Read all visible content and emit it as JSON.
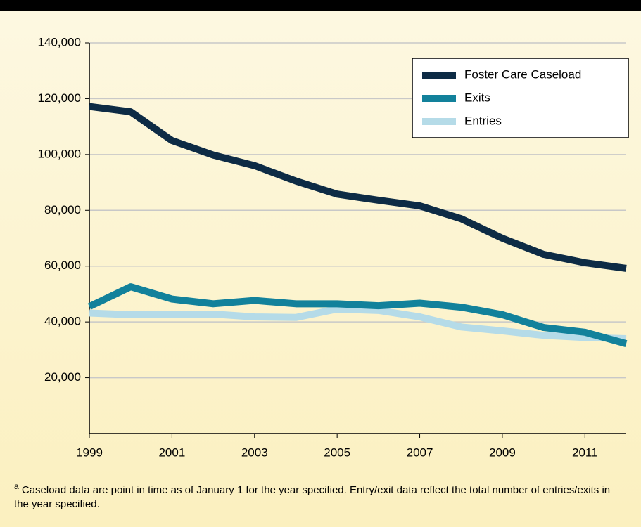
{
  "chart_data": {
    "type": "line",
    "x": [
      1999,
      2000,
      2001,
      2002,
      2003,
      2004,
      2005,
      2006,
      2007,
      2008,
      2009,
      2010,
      2011,
      2012
    ],
    "series": [
      {
        "name": "Foster Care Caseload",
        "color": "#0d2b45",
        "values": [
          117200,
          115300,
          105000,
          99800,
          96000,
          90500,
          85800,
          83600,
          81600,
          77000,
          70000,
          64200,
          61200,
          59200
        ]
      },
      {
        "name": "Exits",
        "color": "#12819b",
        "values": [
          45500,
          52600,
          48200,
          46500,
          47700,
          46500,
          46500,
          45800,
          46700,
          45300,
          42600,
          38000,
          36300,
          32200
        ]
      },
      {
        "name": "Entries",
        "color": "#b5dbe8",
        "values": [
          43200,
          42600,
          42800,
          42800,
          41800,
          41600,
          44600,
          44100,
          41800,
          38200,
          36800,
          35200,
          34400,
          34000
        ]
      }
    ],
    "xlim": [
      1999,
      2012
    ],
    "xticks": [
      1999,
      2001,
      2003,
      2005,
      2007,
      2009,
      2011
    ],
    "ylim": [
      0,
      140000
    ],
    "yticks": [
      {
        "value": 20000,
        "label": "20,000"
      },
      {
        "value": 40000,
        "label": "40,000"
      },
      {
        "value": 60000,
        "label": "60,000"
      },
      {
        "value": 80000,
        "label": "80,000"
      },
      {
        "value": 100000,
        "label": "100,000"
      },
      {
        "value": 120000,
        "label": "120,000"
      },
      {
        "value": 140000,
        "label": "140,000"
      }
    ],
    "grid": true,
    "legend": "upper right",
    "footnote": {
      "marker": "a",
      "text": "Caseload data are point in time as of January 1 for the year specified. Entry/exit data reflect the total number of entries/exits in the year specified."
    }
  }
}
